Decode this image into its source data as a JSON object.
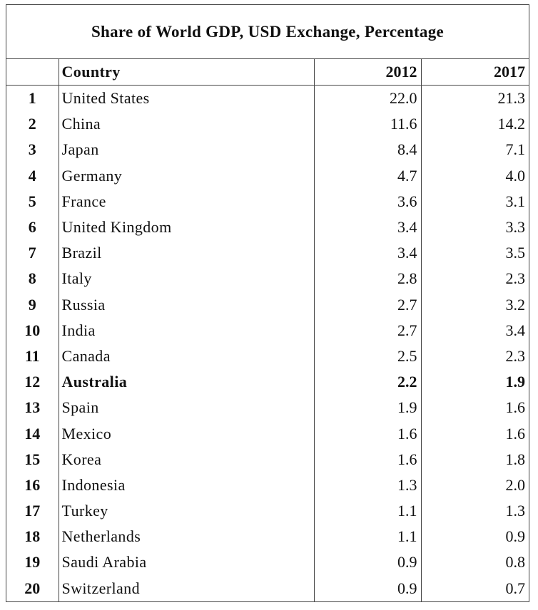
{
  "chart_data": {
    "type": "table",
    "title": "Share of World GDP, USD Exchange, Percentage",
    "columns": [
      "",
      "Country",
      "2012",
      "2017"
    ],
    "rows": [
      {
        "rank": "1",
        "country": "United States",
        "y2012": "22.0",
        "y2017": "21.3"
      },
      {
        "rank": "2",
        "country": "China",
        "y2012": "11.6",
        "y2017": "14.2"
      },
      {
        "rank": "3",
        "country": "Japan",
        "y2012": "8.4",
        "y2017": "7.1"
      },
      {
        "rank": "4",
        "country": "Germany",
        "y2012": "4.7",
        "y2017": "4.0"
      },
      {
        "rank": "5",
        "country": "France",
        "y2012": "3.6",
        "y2017": "3.1"
      },
      {
        "rank": "6",
        "country": "United Kingdom",
        "y2012": "3.4",
        "y2017": "3.3"
      },
      {
        "rank": "7",
        "country": "Brazil",
        "y2012": "3.4",
        "y2017": "3.5"
      },
      {
        "rank": "8",
        "country": "Italy",
        "y2012": "2.8",
        "y2017": "2.3"
      },
      {
        "rank": "9",
        "country": "Russia",
        "y2012": "2.7",
        "y2017": "3.2"
      },
      {
        "rank": "10",
        "country": "India",
        "y2012": "2.7",
        "y2017": "3.4"
      },
      {
        "rank": "11",
        "country": "Canada",
        "y2012": "2.5",
        "y2017": "2.3"
      },
      {
        "rank": "12",
        "country": "Australia",
        "y2012": "2.2",
        "y2017": "1.9",
        "bold": true
      },
      {
        "rank": "13",
        "country": "Spain",
        "y2012": "1.9",
        "y2017": "1.6"
      },
      {
        "rank": "14",
        "country": "Mexico",
        "y2012": "1.6",
        "y2017": "1.6"
      },
      {
        "rank": "15",
        "country": "Korea",
        "y2012": "1.6",
        "y2017": "1.8"
      },
      {
        "rank": "16",
        "country": "Indonesia",
        "y2012": "1.3",
        "y2017": "2.0"
      },
      {
        "rank": "17",
        "country": "Turkey",
        "y2012": "1.1",
        "y2017": "1.3"
      },
      {
        "rank": "18",
        "country": "Netherlands",
        "y2012": "1.1",
        "y2017": "0.9"
      },
      {
        "rank": "19",
        "country": "Saudi Arabia",
        "y2012": "0.9",
        "y2017": "0.8"
      },
      {
        "rank": "20",
        "country": "Switzerland",
        "y2012": "0.9",
        "y2017": "0.7"
      }
    ]
  }
}
